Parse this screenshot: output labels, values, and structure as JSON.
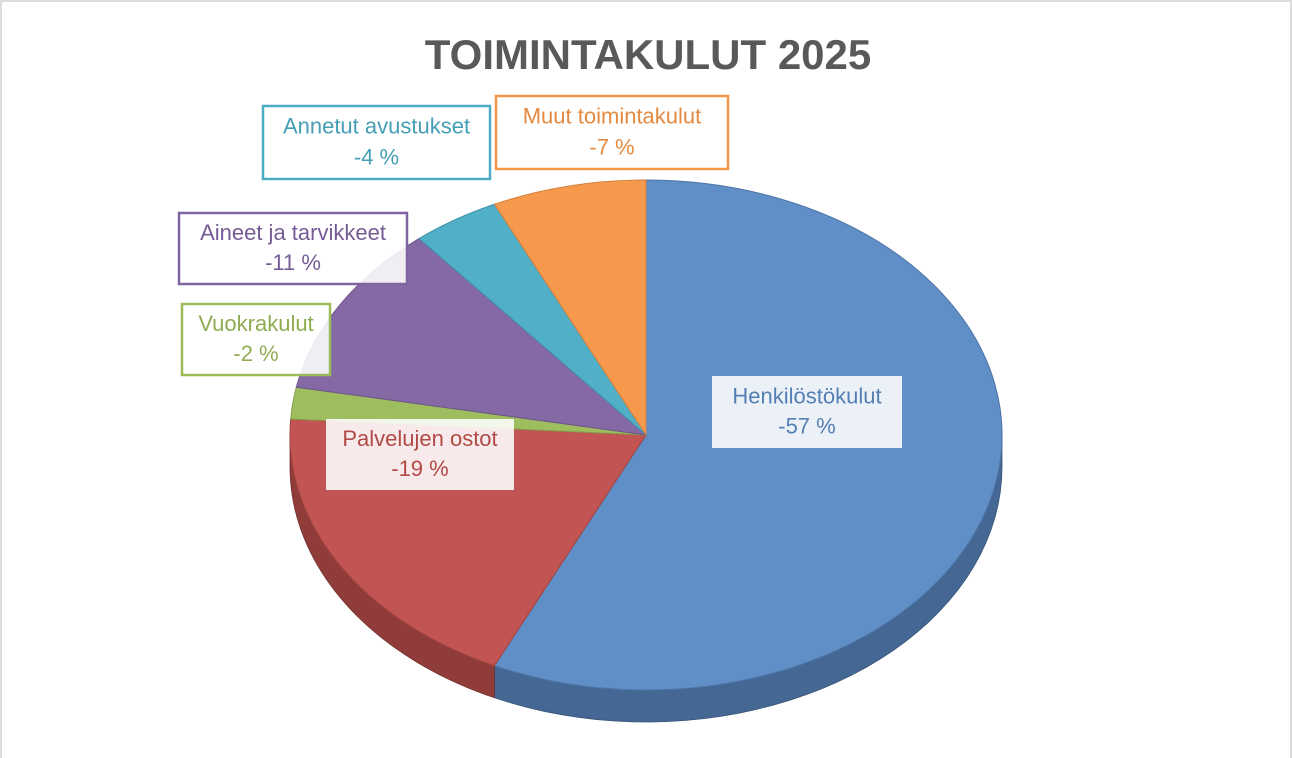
{
  "chart_data": {
    "type": "pie",
    "title": "TOIMINTAKULUT 2025",
    "categories": [
      "Henkilöstökulut",
      "Palvelujen ostot",
      "Vuokrakulut",
      "Aineet ja tarvikkeet",
      "Annetut avustukset",
      "Muut toimintakulut"
    ],
    "values": [
      -57,
      -19,
      -2,
      -11,
      -4,
      -7
    ],
    "value_labels": [
      "-57 %",
      "-19 %",
      "-2 %",
      "-11 %",
      "-4 %",
      "-7 %"
    ],
    "colors": [
      "#5b8ac4",
      "#c0504d",
      "#9bbb59",
      "#8064a2",
      "#4bacc6",
      "#f79646"
    ]
  }
}
